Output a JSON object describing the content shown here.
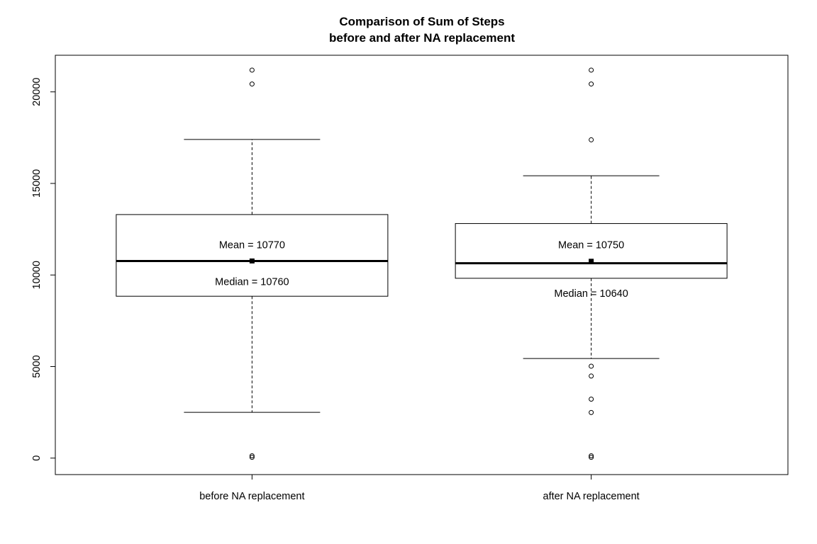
{
  "chart_data": {
    "type": "boxplot",
    "title": [
      "Comparison of Sum of Steps",
      "before and after NA replacement"
    ],
    "xlabel": "",
    "ylabel": "",
    "ylim": [
      -900,
      22000
    ],
    "yticks": [
      0,
      5000,
      10000,
      15000,
      20000
    ],
    "ytick_labels": [
      "0",
      "5000",
      "10000",
      "15000",
      "20000"
    ],
    "categories": [
      "before NA replacement",
      "after NA replacement"
    ],
    "boxes": [
      {
        "name": "before NA replacement",
        "whisker_low": 2500,
        "q1": 8840,
        "median": 10765,
        "q3": 13300,
        "whisker_high": 17400,
        "mean": 10766,
        "outliers": [
          41,
          126,
          20430,
          21190
        ],
        "annotations": [
          {
            "text": "Mean =  10770",
            "y": 11650
          },
          {
            "text": "Median =  10760",
            "y": 9640
          }
        ]
      },
      {
        "name": "after NA replacement",
        "whisker_low": 5440,
        "q1": 9820,
        "median": 10640,
        "q3": 12810,
        "whisker_high": 15420,
        "mean": 10750,
        "outliers": [
          41,
          126,
          2490,
          3220,
          4480,
          5020,
          17380,
          20430,
          21190
        ],
        "annotations": [
          {
            "text": "Mean =  10750",
            "y": 11650
          },
          {
            "text": "Median =  10640",
            "y": 9000
          }
        ]
      }
    ],
    "grid": false,
    "legend": "none",
    "colors": {
      "line": "#000000",
      "background": "#ffffff"
    }
  }
}
